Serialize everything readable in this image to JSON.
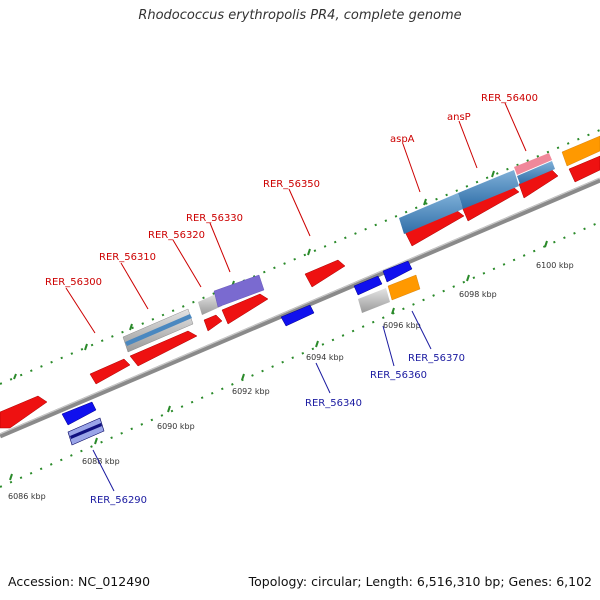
{
  "title": "Rhodococcus erythropolis PR4, complete genome",
  "footer": {
    "accession": "Accession: NC_012490",
    "summary": "Topology: circular; Length: 6,516,310 bp; Genes: 6,102"
  },
  "scale_labels": [
    "6086 kbp",
    "6088 kbp",
    "6090 kbp",
    "6092 kbp",
    "6094 kbp",
    "6096 kbp",
    "6098 kbp",
    "6100 kbp"
  ],
  "gene_labels_forward": [
    "RER_56300",
    "RER_56310",
    "RER_56320",
    "RER_56330",
    "RER_56350",
    "aspA",
    "ansP",
    "RER_56400"
  ],
  "gene_labels_reverse": [
    "RER_56290",
    "RER_56340",
    "RER_56360",
    "RER_56370"
  ],
  "colors": {
    "forward_gene": "#ee1111",
    "reverse_gene": "#1010ee",
    "feature_blue": "#4a88c0",
    "feature_purple": "#7a6ad0",
    "feature_grey": "#bbbbbb",
    "feature_orange": "#ff9900",
    "backbone": "#888888",
    "tick": "#2a8a2a"
  }
}
